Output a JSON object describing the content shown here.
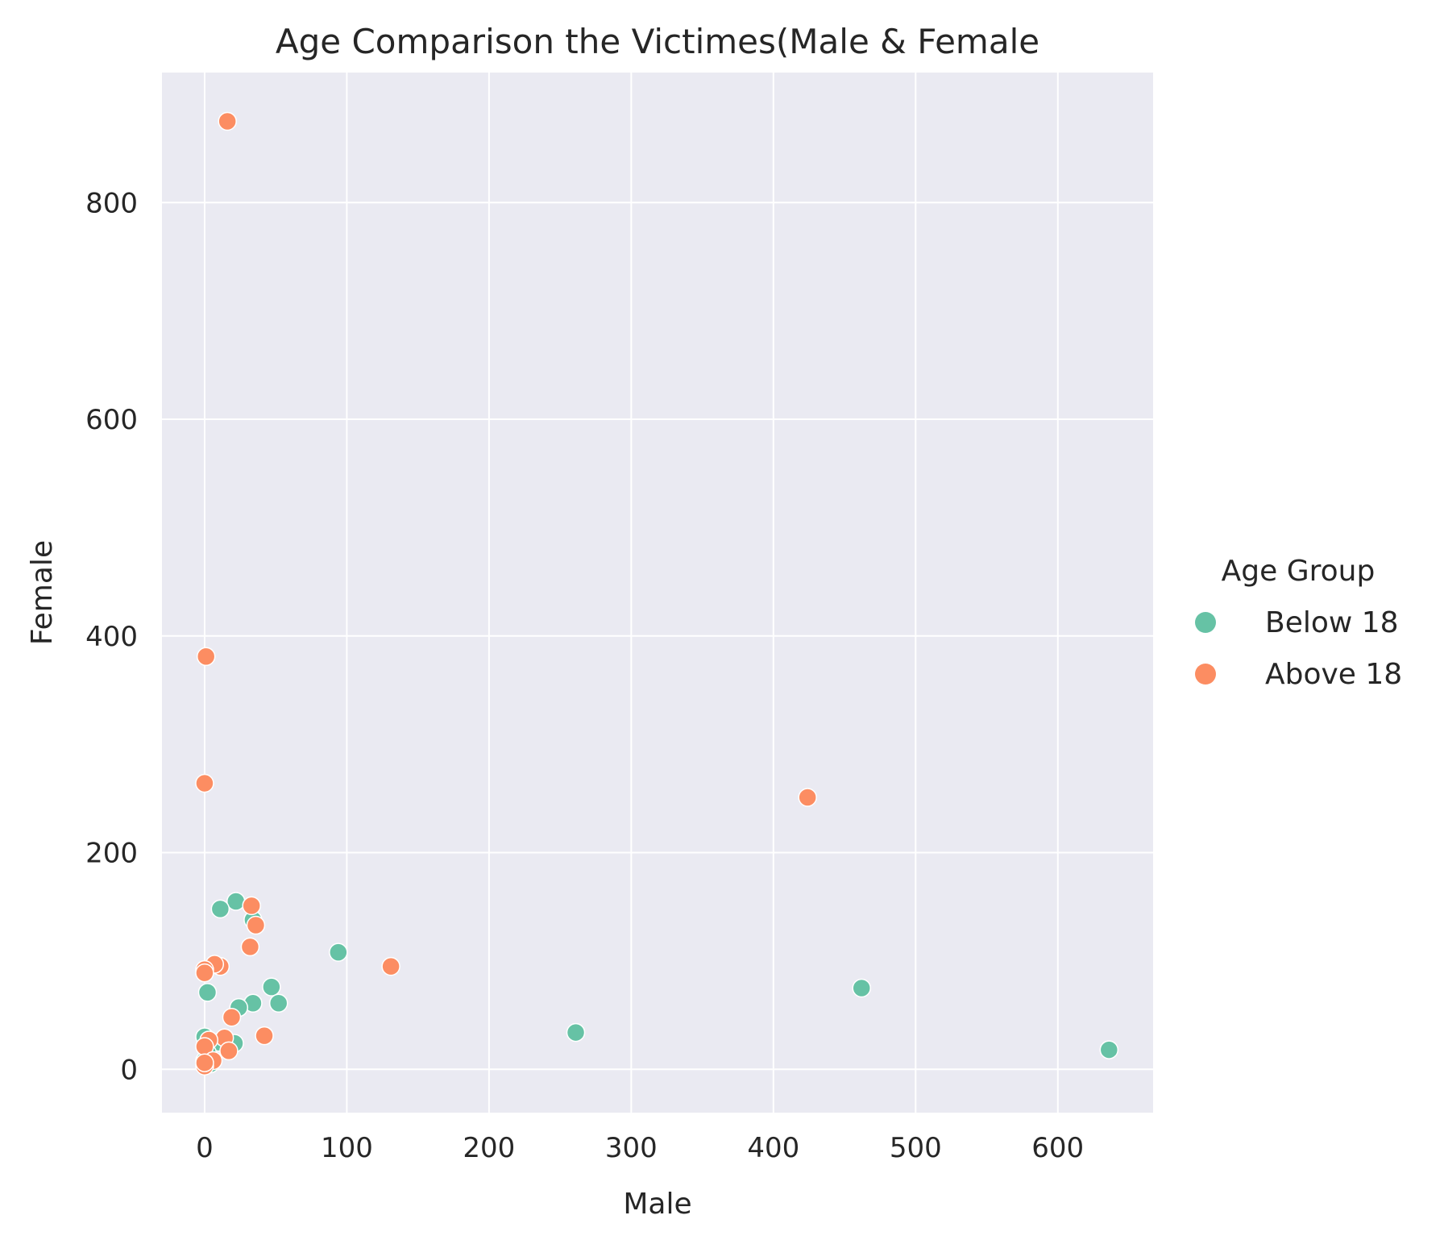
{
  "chart_data": {
    "type": "scatter",
    "title": "Age Comparison the Victimes(Male & Female",
    "xlabel": "Male",
    "ylabel": "Female",
    "xlim": [
      -30,
      667
    ],
    "ylim": [
      -40,
      920
    ],
    "xticks": [
      0,
      100,
      200,
      300,
      400,
      500,
      600
    ],
    "yticks": [
      0,
      200,
      400,
      600,
      800
    ],
    "grid": true,
    "legend": {
      "title": "Age Group",
      "placement": "right"
    },
    "series": [
      {
        "name": "Below 18",
        "color": "#66c2a5",
        "points": [
          [
            22,
            155
          ],
          [
            11,
            148
          ],
          [
            34,
            138
          ],
          [
            94,
            108
          ],
          [
            47,
            76
          ],
          [
            34,
            61
          ],
          [
            52,
            61
          ],
          [
            24,
            57
          ],
          [
            2,
            71
          ],
          [
            261,
            34
          ],
          [
            462,
            75
          ],
          [
            636,
            18
          ],
          [
            0,
            30
          ],
          [
            3,
            26
          ],
          [
            10,
            25
          ],
          [
            21,
            24
          ],
          [
            2,
            15
          ],
          [
            0,
            8
          ],
          [
            4,
            5
          ]
        ]
      },
      {
        "name": "Above 18",
        "color": "#fc8d62",
        "points": [
          [
            16,
            875
          ],
          [
            1,
            381
          ],
          [
            0,
            264
          ],
          [
            424,
            251
          ],
          [
            33,
            151
          ],
          [
            36,
            133
          ],
          [
            32,
            113
          ],
          [
            131,
            95
          ],
          [
            11,
            95
          ],
          [
            7,
            97
          ],
          [
            0,
            92
          ],
          [
            0,
            89
          ],
          [
            19,
            48
          ],
          [
            42,
            31
          ],
          [
            14,
            29
          ],
          [
            3,
            27
          ],
          [
            17,
            17
          ],
          [
            0,
            21
          ],
          [
            6,
            8
          ],
          [
            0,
            3
          ],
          [
            0,
            6
          ]
        ]
      }
    ]
  }
}
